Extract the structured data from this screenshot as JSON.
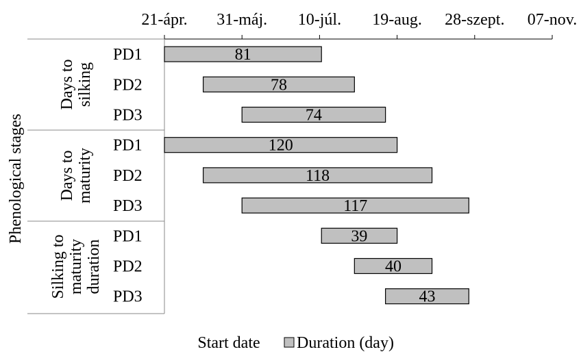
{
  "chart_data": {
    "type": "bar",
    "subtype": "gantt-stacked-horizontal",
    "x_axis_position": "top",
    "x_tick_labels": [
      "21-ápr.",
      "31-máj.",
      "10-júl.",
      "19-aug.",
      "28-szept.",
      "07-nov."
    ],
    "xlim_days": [
      0,
      200
    ],
    "x_tick_step_days": 40,
    "grid": false,
    "y_axis_title": "Phenological stages",
    "groups": [
      {
        "label_lines": [
          "Days to",
          "silking"
        ],
        "rows": [
          "PD1",
          "PD2",
          "PD3"
        ]
      },
      {
        "label_lines": [
          "Days to",
          "maturity"
        ],
        "rows": [
          "PD1",
          "PD2",
          "PD3"
        ]
      },
      {
        "label_lines": [
          "Silking to",
          "maturity",
          "duration"
        ],
        "rows": [
          "PD1",
          "PD2",
          "PD3"
        ]
      }
    ],
    "series": [
      {
        "name": "Start date",
        "color": "none",
        "start_dates": [
          "21-ápr.",
          "11-máj.",
          "31-máj.",
          "21-ápr.",
          "11-máj.",
          "31-máj.",
          "10-júl.",
          "27-júl.",
          "12-aug."
        ],
        "values": [
          0,
          20,
          40,
          0,
          20,
          40,
          81,
          98,
          114
        ]
      },
      {
        "name": "Duration (day)",
        "color": "#c0c0c0",
        "values": [
          81,
          78,
          74,
          120,
          118,
          117,
          39,
          40,
          43
        ]
      }
    ],
    "legend": {
      "placement": "bottom",
      "entries": [
        "Start date",
        "Duration (day)"
      ]
    }
  }
}
